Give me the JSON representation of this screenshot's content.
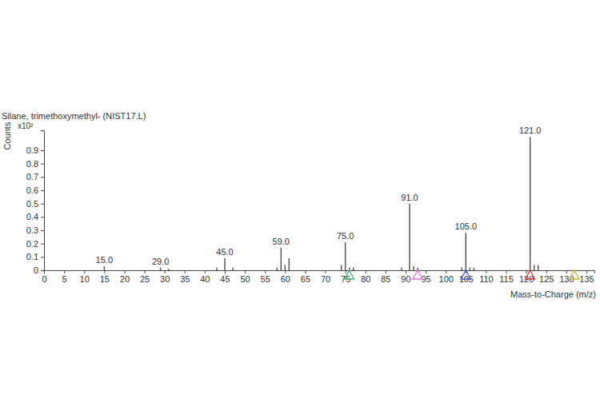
{
  "chart_data": {
    "type": "bar",
    "title": "Silane, trimethoxymethyl- (NIST17.L)",
    "y_label": "Counts",
    "y_unit_label": "x10²",
    "x_label": "Mass-to-Charge (m/z)",
    "x": [
      15,
      29,
      31,
      43,
      45,
      47,
      58,
      59,
      60,
      61,
      74,
      75,
      76,
      77,
      89,
      91,
      92,
      93,
      104,
      105,
      106,
      107,
      121,
      122,
      123
    ],
    "values": [
      0.03,
      0.02,
      0.01,
      0.02,
      0.09,
      0.02,
      0.02,
      0.17,
      0.04,
      0.09,
      0.04,
      0.21,
      0.02,
      0.02,
      0.02,
      0.5,
      0.03,
      0.02,
      0.02,
      0.28,
      0.02,
      0.02,
      1.0,
      0.04,
      0.04
    ],
    "color": "#555555",
    "annotations": [
      {
        "x": 15,
        "label": "15.0"
      },
      {
        "x": 29,
        "label": "29.0"
      },
      {
        "x": 45,
        "label": "45.0"
      },
      {
        "x": 59,
        "label": "59.0"
      },
      {
        "x": 75,
        "label": "75.0"
      },
      {
        "x": 91,
        "label": "91.0"
      },
      {
        "x": 105,
        "label": "105.0"
      },
      {
        "x": 121,
        "label": "121.0"
      }
    ],
    "markers": [
      {
        "x": 76,
        "color": "#3cb371"
      },
      {
        "x": 93,
        "color": "#ee66ee"
      },
      {
        "x": 105,
        "color": "#3355cc"
      },
      {
        "x": 121,
        "color": "#e03030"
      },
      {
        "x": 132,
        "color": "#c8b432"
      }
    ],
    "xlim": [
      0,
      137
    ],
    "xticks": [
      0,
      5,
      10,
      15,
      20,
      25,
      30,
      35,
      40,
      45,
      50,
      55,
      60,
      65,
      70,
      75,
      80,
      85,
      90,
      95,
      100,
      105,
      110,
      115,
      120,
      125,
      130,
      135
    ],
    "ylim": [
      0,
      1.05
    ],
    "yticks": [
      0,
      0.1,
      0.2,
      0.3,
      0.4,
      0.5,
      0.6,
      0.7,
      0.8,
      0.9
    ],
    "grid": false
  }
}
